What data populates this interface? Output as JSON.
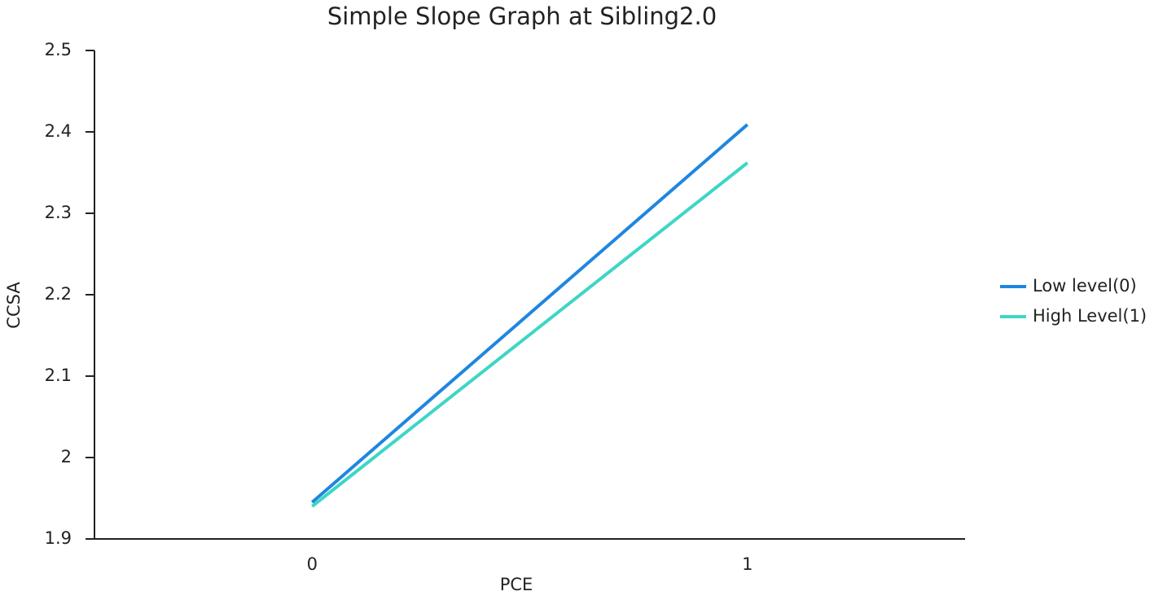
{
  "chart_data": {
    "type": "line",
    "title": "Simple Slope Graph at Sibling2.0",
    "x_label": "PCE",
    "y_label": "CCSA",
    "categories": [
      "0",
      "1"
    ],
    "series": [
      {
        "name": "Low level(0)",
        "color": "#1f86e0",
        "values": [
          1.945,
          2.409
        ]
      },
      {
        "name": "High Level(1)",
        "color": "#3dd6c6",
        "values": [
          1.94,
          2.362
        ]
      }
    ],
    "ylim": [
      1.9,
      2.5
    ],
    "yticks": [
      1.9,
      2,
      2.1,
      2.2,
      2.3,
      2.4,
      2.5
    ],
    "grid": false,
    "legend": "right"
  }
}
